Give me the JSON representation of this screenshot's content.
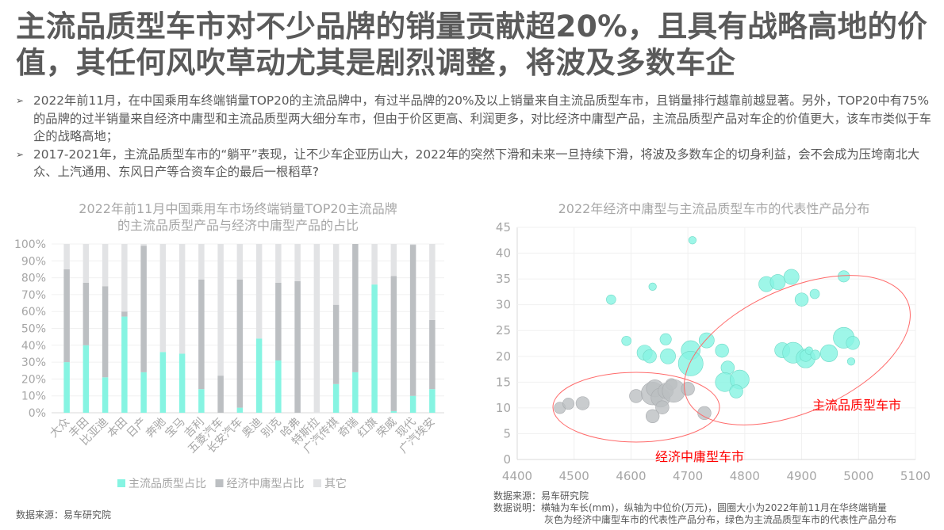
{
  "title": "主流品质型车市对不少品牌的销量贡献超20%，且具有战略高地的价值，其任何风吹草动尤其是剧烈调整，将波及多数车企",
  "bullets": [
    "2022年前11月，在中国乘用车终端销量TOP20的主流品牌中，有过半品牌的20%及以上销量来自主流品质型车市，且销量排行越靠前越显著。另外，TOP20中有75%的品牌的过半销量来自经济中庸型和主流品质型两大细分车市，但由于价区更高、利润更多，对比经济中庸型产品，主流品质型产品对车企的价值更大，该车市类似于车企的战略高地；",
    "2017-2021年，主流品质型车市的“躺平”表现，让不少车企亚历山大，2022年的突然下滑和未来一旦持续下滑，将波及多数车企的切身利益，会不会成为压垮南北大众、上汽通用、东风日产等合资车企的最后一根稻草?"
  ],
  "bullet_icon": "arrowhead-bullet",
  "colors": {
    "green": "#86f4e2",
    "gray": "#bcbfc2",
    "light_gray": "#e2e3e5",
    "red": "#ff0000",
    "grid": "#eeeeee"
  },
  "left_source": "数据来源：易车研究院",
  "right_source": "数据来源：易车研究院",
  "right_note_1": "数据说明：横轴为车长(mm)，纵轴为中位价(万元)，圆圈大小为2022年前11月在华终端销量",
  "right_note_2": "灰色为经济中庸型车市的代表性产品分布，绿色为主流品质型车市的代表性产品分布",
  "chart_data": [
    {
      "type": "bar",
      "stacked": true,
      "title_line1": "2022年前11月中国乘用车市场终端销量TOP20主流品牌",
      "title_line2": "的主流品质型产品与经济中庸型产品的占比",
      "categories": [
        "大众",
        "丰田",
        "比亚迪",
        "本田",
        "日产",
        "奔驰",
        "宝马",
        "吉利",
        "五菱汽车",
        "长安汽车",
        "奥迪",
        "别克",
        "哈弗",
        "特斯拉",
        "广汽传祺",
        "奇瑞",
        "红旗",
        "荣威",
        "现代",
        "广汽埃安"
      ],
      "series": [
        {
          "name": "主流品质型占比",
          "color": "#86f4e2",
          "values": [
            30,
            40,
            21,
            57,
            24,
            36,
            35,
            14,
            0,
            3,
            44,
            31,
            0,
            0,
            17,
            24,
            76,
            1,
            10,
            14
          ]
        },
        {
          "name": "经济中庸型占比",
          "color": "#bcbfc2",
          "values": [
            55,
            37,
            54,
            3,
            75,
            0,
            0,
            65,
            22,
            76,
            0,
            46,
            78,
            0,
            47,
            76,
            0,
            80,
            89.5,
            41
          ]
        },
        {
          "name": "其它",
          "color": "#e2e3e5",
          "values": [
            15,
            23,
            25,
            40,
            1,
            64,
            65,
            21,
            78,
            21,
            56,
            23,
            22,
            100,
            36,
            0,
            24,
            19,
            0.5,
            45
          ]
        }
      ],
      "ylim": [
        0,
        100
      ],
      "yticks": [
        "0%",
        "10%",
        "20%",
        "30%",
        "40%",
        "50%",
        "60%",
        "70%",
        "80%",
        "90%",
        "100%"
      ],
      "grid": true,
      "legend": "bottom"
    },
    {
      "type": "scatter",
      "bubble": true,
      "title": "2022年经济中庸型与主流品质型车市的代表性产品分布",
      "xlim": [
        4400,
        5100
      ],
      "ylim": [
        0,
        45
      ],
      "xticks": [
        "4400",
        "4500",
        "4600",
        "4700",
        "4800",
        "4900",
        "5000",
        "5100"
      ],
      "yticks": [
        "0",
        "5",
        "10",
        "15",
        "20",
        "25",
        "30",
        "35",
        "40",
        "45"
      ],
      "grid": true,
      "annotations": [
        "主流品质型车市",
        "经济中庸型车市"
      ],
      "series": [
        {
          "group": "主流品质型车市",
          "color": "#86f4e2",
          "points": [
            [
              4708,
              42.5,
              2
            ],
            [
              4638,
              33.5,
              2
            ],
            [
              4565,
              31,
              2.5
            ],
            [
              4592,
              23,
              2.5
            ],
            [
              4661,
              23.3,
              3
            ],
            [
              4624,
              20.7,
              4
            ],
            [
              4633,
              20,
              3.5
            ],
            [
              4665,
              20,
              4
            ],
            [
              4705,
              21.2,
              5
            ],
            [
              4705,
              18.6,
              6.5
            ],
            [
              4733,
              23.1,
              4
            ],
            [
              4760,
              21.1,
              3.5
            ],
            [
              4770,
              17.8,
              3.5
            ],
            [
              4765,
              15,
              5
            ],
            [
              4791,
              15.5,
              5
            ],
            [
              4785,
              13.2,
              3.5
            ],
            [
              4838,
              34,
              4
            ],
            [
              4858,
              34.4,
              4
            ],
            [
              4882,
              35.4,
              4
            ],
            [
              4900,
              31,
              3.5
            ],
            [
              4923,
              32.1,
              2.5
            ],
            [
              4974,
              35.5,
              3
            ],
            [
              4866,
              21.2,
              4
            ],
            [
              4885,
              20.7,
              5.5
            ],
            [
              4907,
              19.6,
              5
            ],
            [
              4907,
              20.1,
              3
            ],
            [
              4913,
              21.1,
              2
            ],
            [
              4924,
              20.3,
              2.5
            ],
            [
              4948,
              20.6,
              4.5
            ],
            [
              4974,
              23.6,
              5.5
            ],
            [
              4990,
              22.6,
              3.5
            ],
            [
              4987,
              19.0,
              2
            ]
          ]
        },
        {
          "group": "经济中庸型车市",
          "color": "#bcbfc2",
          "points": [
            [
              4475,
              10,
              3
            ],
            [
              4490,
              10.8,
              3
            ],
            [
              4515,
              10.9,
              3.5
            ],
            [
              4609,
              12.3,
              3.5
            ],
            [
              4638,
              12.8,
              6
            ],
            [
              4642,
              13.8,
              4.5
            ],
            [
              4638,
              8.4,
              3.5
            ],
            [
              4652,
              12,
              5
            ],
            [
              4655,
              10.1,
              3.5
            ],
            [
              4661,
              13.3,
              4
            ],
            [
              4671,
              14.6,
              3
            ],
            [
              4675,
              13.3,
              6
            ],
            [
              4700,
              13.7,
              3.5
            ],
            [
              4729,
              9,
              3.5
            ]
          ]
        }
      ]
    }
  ]
}
